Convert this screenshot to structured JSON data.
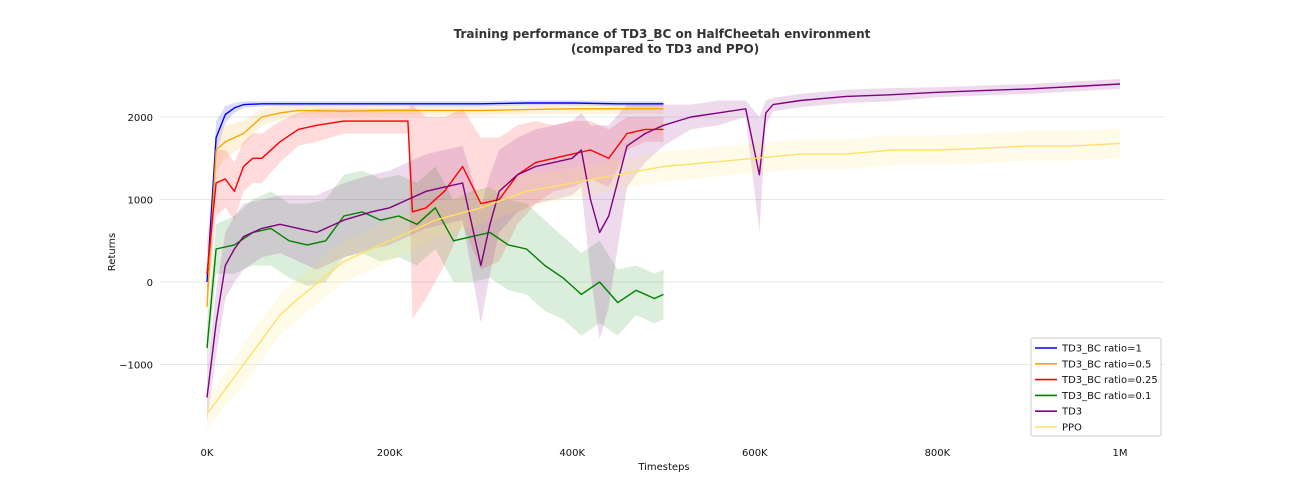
{
  "chart_data": {
    "type": "line",
    "title": "Training performance of TD3_BC on HalfCheetah environment",
    "subtitle": "(compared to TD3 and PPO)",
    "xlabel": "Timesteps",
    "ylabel": "Returns",
    "xlim": [
      -50000,
      1050000
    ],
    "ylim": [
      -1900,
      2600
    ],
    "xticks": [
      0,
      200000,
      400000,
      600000,
      800000,
      1000000
    ],
    "xtick_labels": [
      "0K",
      "200K",
      "400K",
      "600K",
      "800K",
      "1M"
    ],
    "yticks": [
      -1000,
      0,
      1000,
      2000
    ],
    "ytick_labels": [
      "−1000",
      "0",
      "1000",
      "2000"
    ],
    "grid": "horizontal",
    "legend_position": "lower-right",
    "series": [
      {
        "name": "TD3_BC ratio=1",
        "color": "#0000ff",
        "x": [
          0,
          10000,
          20000,
          30000,
          40000,
          60000,
          80000,
          100000,
          150000,
          200000,
          250000,
          300000,
          350000,
          400000,
          450000,
          500000
        ],
        "y": [
          0,
          1750,
          2030,
          2110,
          2150,
          2160,
          2160,
          2160,
          2160,
          2160,
          2160,
          2160,
          2170,
          2170,
          2160,
          2160
        ],
        "band": [
          80,
          200,
          100,
          60,
          40,
          30,
          30,
          30,
          30,
          30,
          30,
          30,
          30,
          30,
          30,
          30
        ]
      },
      {
        "name": "TD3_BC ratio=0.5",
        "color": "#ffa500",
        "x": [
          0,
          10000,
          20000,
          40000,
          60000,
          80000,
          100000,
          150000,
          200000,
          250000,
          300000,
          350000,
          400000,
          450000,
          500000
        ],
        "y": [
          -300,
          1600,
          1700,
          1800,
          2000,
          2050,
          2080,
          2070,
          2080,
          2080,
          2080,
          2090,
          2100,
          2100,
          2100
        ],
        "band": [
          200,
          250,
          200,
          150,
          100,
          80,
          60,
          60,
          60,
          60,
          60,
          60,
          60,
          60,
          60
        ]
      },
      {
        "name": "TD3_BC ratio=0.25",
        "color": "#ff0000",
        "x": [
          0,
          10000,
          20000,
          30000,
          40000,
          50000,
          60000,
          80000,
          100000,
          120000,
          150000,
          180000,
          200000,
          220000,
          225000,
          240000,
          260000,
          280000,
          300000,
          320000,
          340000,
          360000,
          380000,
          400000,
          420000,
          440000,
          460000,
          480000,
          500000
        ],
        "y": [
          100,
          1200,
          1250,
          1100,
          1400,
          1500,
          1500,
          1700,
          1850,
          1900,
          1950,
          1950,
          1950,
          1950,
          850,
          900,
          1100,
          1400,
          950,
          1000,
          1300,
          1450,
          1500,
          1550,
          1600,
          1500,
          1800,
          1850,
          1850
        ],
        "band": [
          400,
          400,
          350,
          350,
          300,
          300,
          300,
          250,
          200,
          200,
          150,
          150,
          150,
          150,
          1300,
          1100,
          900,
          700,
          800,
          750,
          600,
          500,
          400,
          400,
          350,
          350,
          200,
          150,
          150
        ]
      },
      {
        "name": "TD3_BC ratio=0.1",
        "color": "#008000",
        "x": [
          0,
          10000,
          30000,
          50000,
          70000,
          90000,
          110000,
          130000,
          150000,
          170000,
          190000,
          210000,
          230000,
          250000,
          270000,
          290000,
          310000,
          330000,
          350000,
          370000,
          390000,
          410000,
          430000,
          450000,
          470000,
          490000,
          500000
        ],
        "y": [
          -800,
          400,
          450,
          600,
          650,
          500,
          450,
          500,
          800,
          850,
          750,
          800,
          700,
          900,
          500,
          550,
          600,
          450,
          400,
          200,
          50,
          -150,
          0,
          -250,
          -100,
          -200,
          -150
        ],
        "band": [
          300,
          300,
          350,
          400,
          450,
          450,
          500,
          500,
          500,
          500,
          500,
          500,
          500,
          500,
          500,
          550,
          550,
          550,
          550,
          550,
          500,
          500,
          500,
          400,
          300,
          300,
          300
        ]
      },
      {
        "name": "TD3",
        "color": "#800080",
        "x": [
          0,
          10000,
          20000,
          30000,
          40000,
          60000,
          80000,
          100000,
          120000,
          150000,
          180000,
          200000,
          220000,
          240000,
          260000,
          280000,
          300000,
          310000,
          320000,
          340000,
          360000,
          380000,
          400000,
          410000,
          420000,
          430000,
          440000,
          460000,
          480000,
          500000,
          530000,
          560000,
          590000,
          605000,
          612000,
          620000,
          650000,
          700000,
          750000,
          800000,
          850000,
          900000,
          950000,
          1000000
        ],
        "y": [
          -1400,
          -500,
          200,
          400,
          550,
          650,
          700,
          650,
          600,
          750,
          850,
          900,
          1000,
          1100,
          1150,
          1200,
          200,
          700,
          1100,
          1300,
          1400,
          1450,
          1500,
          1600,
          1000,
          600,
          800,
          1650,
          1800,
          1900,
          2000,
          2050,
          2100,
          1300,
          2050,
          2150,
          2200,
          2250,
          2270,
          2300,
          2320,
          2340,
          2370,
          2400
        ],
        "band": [
          300,
          400,
          400,
          400,
          400,
          350,
          350,
          400,
          450,
          450,
          450,
          450,
          450,
          450,
          450,
          450,
          700,
          600,
          500,
          450,
          450,
          450,
          450,
          450,
          900,
          1300,
          1100,
          500,
          350,
          250,
          150,
          150,
          100,
          700,
          150,
          80,
          80,
          80,
          80,
          60,
          60,
          60,
          60,
          60
        ]
      },
      {
        "name": "PPO",
        "color": "#ffe066",
        "x": [
          0,
          20000,
          40000,
          60000,
          80000,
          100000,
          150000,
          200000,
          250000,
          300000,
          350000,
          400000,
          450000,
          500000,
          550000,
          600000,
          650000,
          700000,
          750000,
          800000,
          850000,
          900000,
          950000,
          1000000
        ],
        "y": [
          -1600,
          -1300,
          -1000,
          -700,
          -400,
          -200,
          250,
          500,
          750,
          900,
          1100,
          1200,
          1300,
          1400,
          1450,
          1500,
          1550,
          1550,
          1600,
          1600,
          1620,
          1650,
          1650,
          1680
        ],
        "band": [
          200,
          200,
          250,
          250,
          250,
          250,
          250,
          250,
          220,
          200,
          200,
          180,
          180,
          180,
          180,
          180,
          180,
          180,
          180,
          180,
          180,
          180,
          180,
          180
        ]
      }
    ]
  }
}
